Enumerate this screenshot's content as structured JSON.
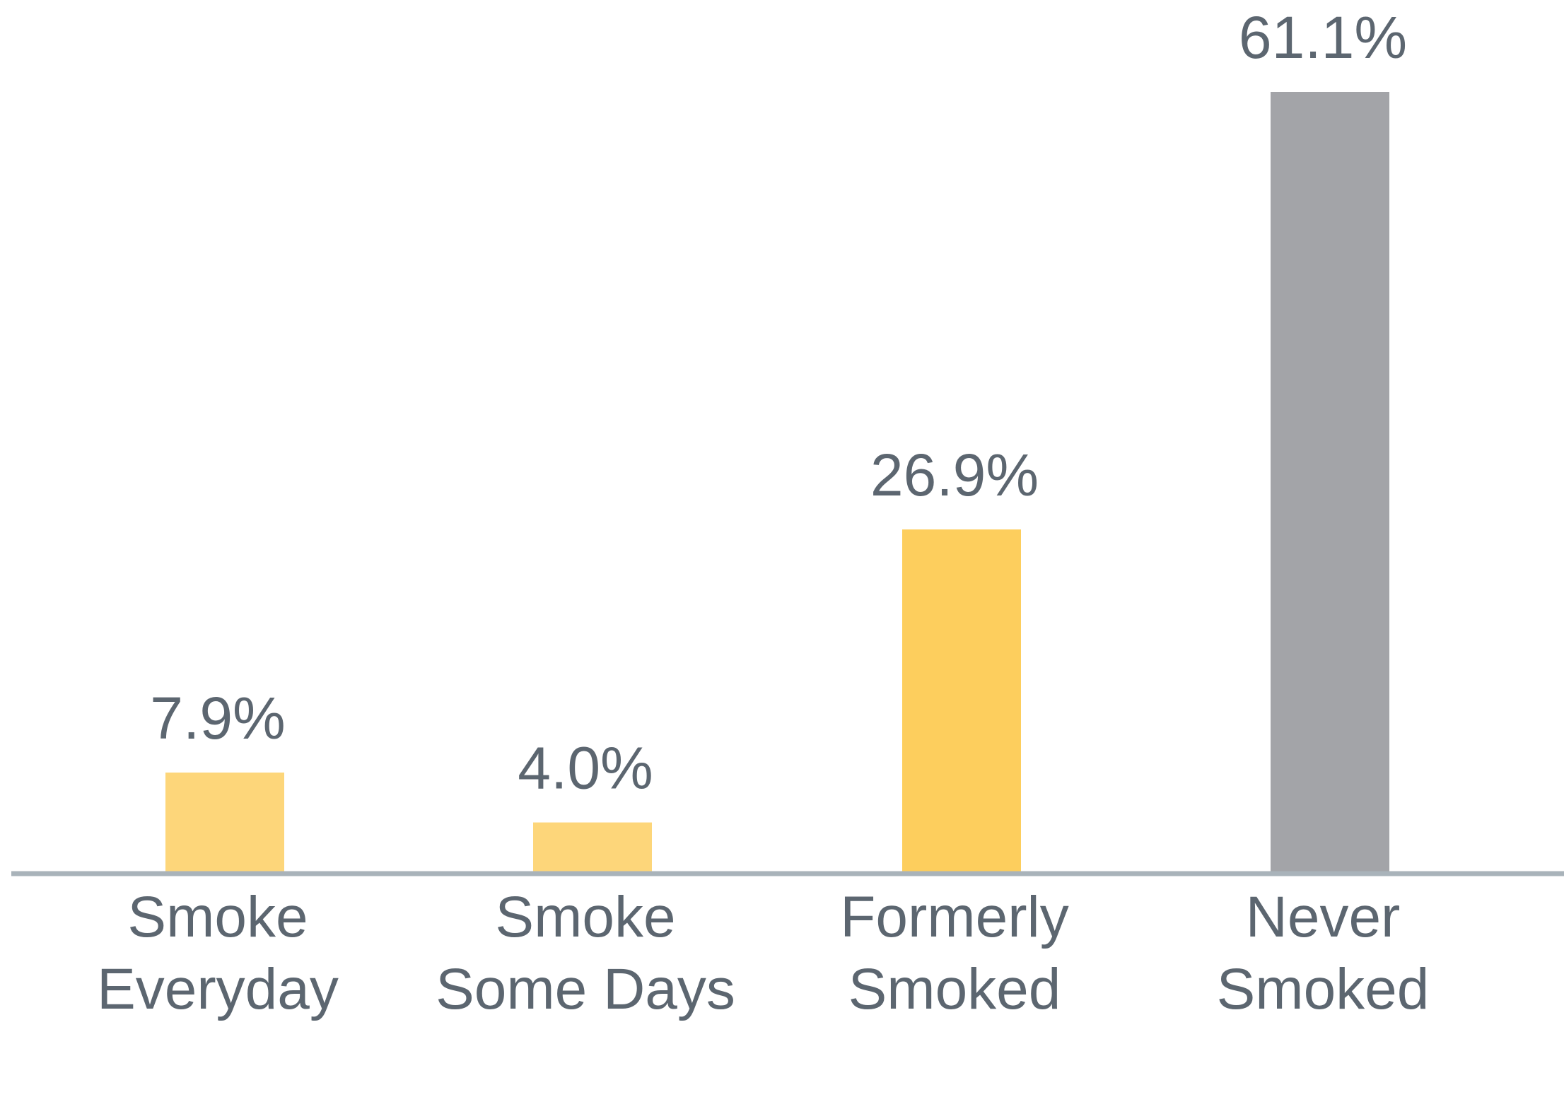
{
  "chart_data": {
    "type": "bar",
    "categories": [
      [
        "Smoke",
        "Everyday"
      ],
      [
        "Smoke",
        "Some Days"
      ],
      [
        "Formerly",
        "Smoked"
      ],
      [
        "Never",
        "Smoked"
      ]
    ],
    "values": [
      7.9,
      4.0,
      26.9,
      61.1
    ],
    "value_labels": [
      "7.9%",
      "4.0%",
      "26.9%",
      "61.1%"
    ],
    "bar_colors": [
      "#fdd67a",
      "#fdd67a",
      "#fdce5d",
      "#a3a4a8"
    ],
    "axis_color": "#a9b3ba",
    "text_color": "#5c6670",
    "ylim": [
      0,
      61.1
    ],
    "grid": false,
    "legend": "none"
  }
}
